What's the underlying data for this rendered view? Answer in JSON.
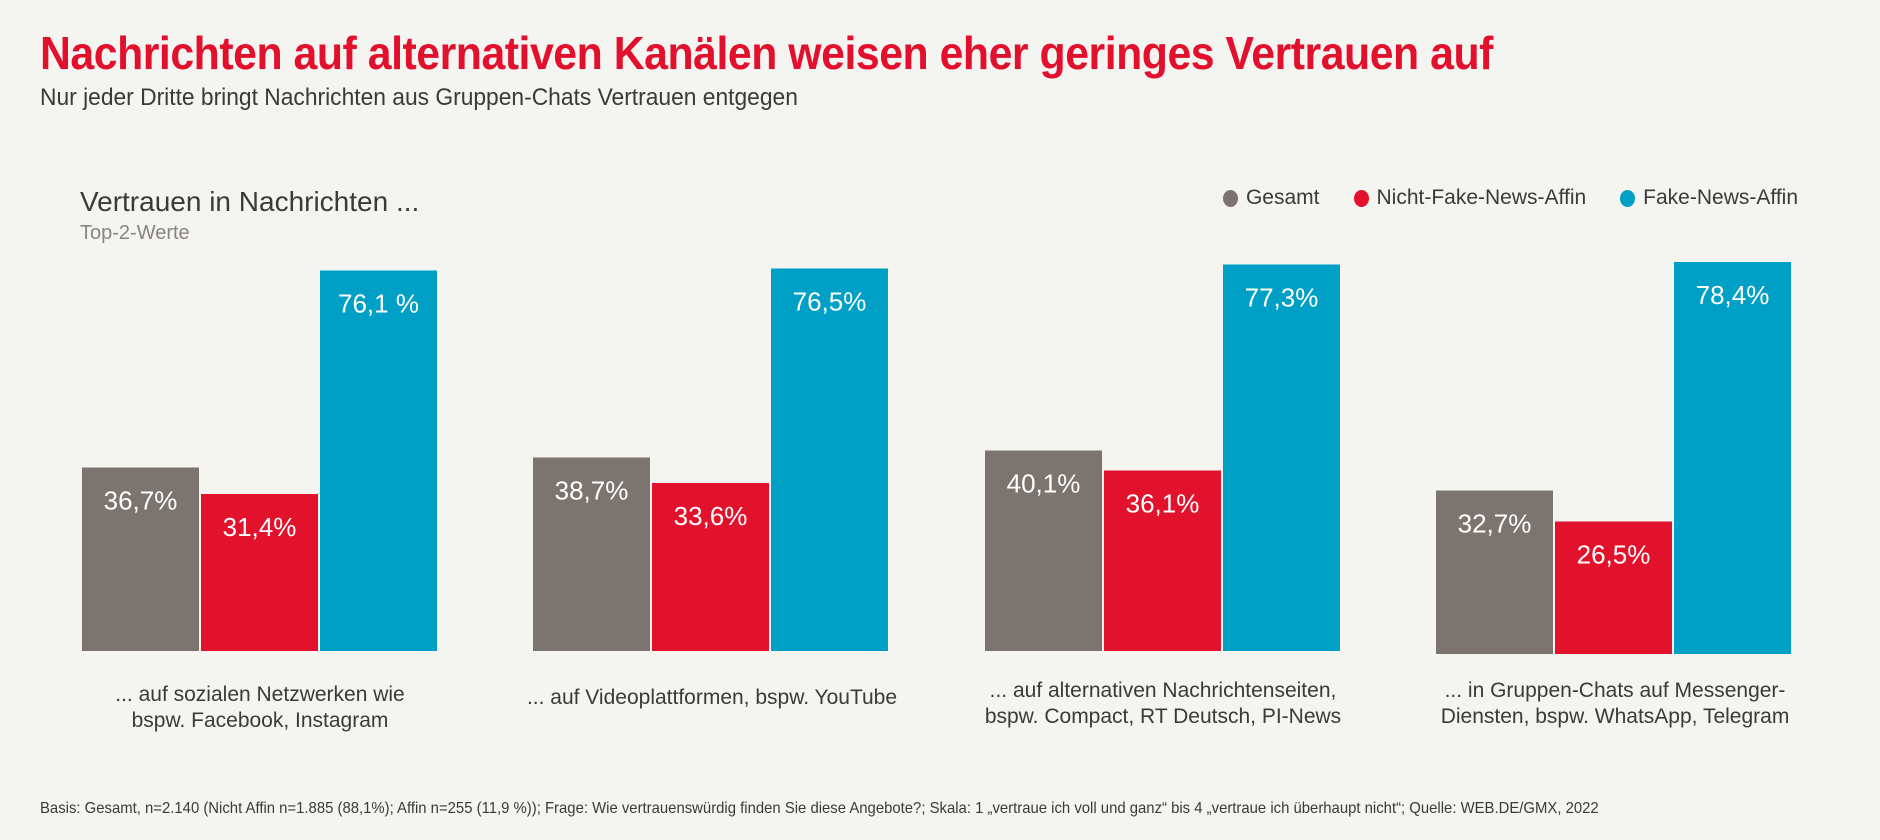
{
  "header": {
    "title": "Nachrichten auf alternativen Kanälen weisen eher geringes Vertrauen auf",
    "subtitle": "Nur jeder Dritte bringt Nachrichten aus Gruppen-Chats Vertrauen entgegen"
  },
  "chart_data": {
    "type": "bar",
    "title": "Vertrauen in Nachrichten ...",
    "subtitle": "Top-2-Werte",
    "xlabel": "",
    "ylabel": "",
    "ylim": [
      0,
      100
    ],
    "grid": false,
    "legend_position": "top-right",
    "categories": [
      "... auf sozialen Netzwerken wie\nbspw. Facebook, Instagram",
      "... auf Videoplattformen, bspw. YouTube",
      "... auf alternativen Nachrichtenseiten,\nbspw. Compact, RT Deutsch, PI-News",
      "... in Gruppen-Chats auf Messenger-\nDiensten, bspw. WhatsApp, Telegram"
    ],
    "series": [
      {
        "name": "Gesamt",
        "color": "#7b746f",
        "values": [
          36.7,
          38.7,
          40.1,
          32.7
        ],
        "labels": [
          "36,7%",
          "38,7%",
          "40,1%",
          "32,7%"
        ]
      },
      {
        "name": "Nicht-Fake-News-Affin",
        "color": "#e2122d",
        "values": [
          31.4,
          33.6,
          36.1,
          26.5
        ],
        "labels": [
          "31,4%",
          "33,6%",
          "36,1%",
          "26,5%"
        ]
      },
      {
        "name": "Fake-News-Affin",
        "color": "#00a0c6",
        "values": [
          76.1,
          76.5,
          77.3,
          78.4
        ],
        "labels": [
          "76,1 %",
          "76,5%",
          "77,3%",
          "78,4%"
        ]
      }
    ]
  },
  "footnote": "Basis: Gesamt, n=2.140 (Nicht Affin n=1.885 (88,1%); Affin n=255 (11,9 %)); Frage: Wie vertrauenswürdig finden Sie diese Angebote?; Skala: 1 „vertraue ich voll und ganz“ bis 4 „vertraue ich überhaupt nicht“; Quelle:  WEB.DE/GMX, 2022"
}
